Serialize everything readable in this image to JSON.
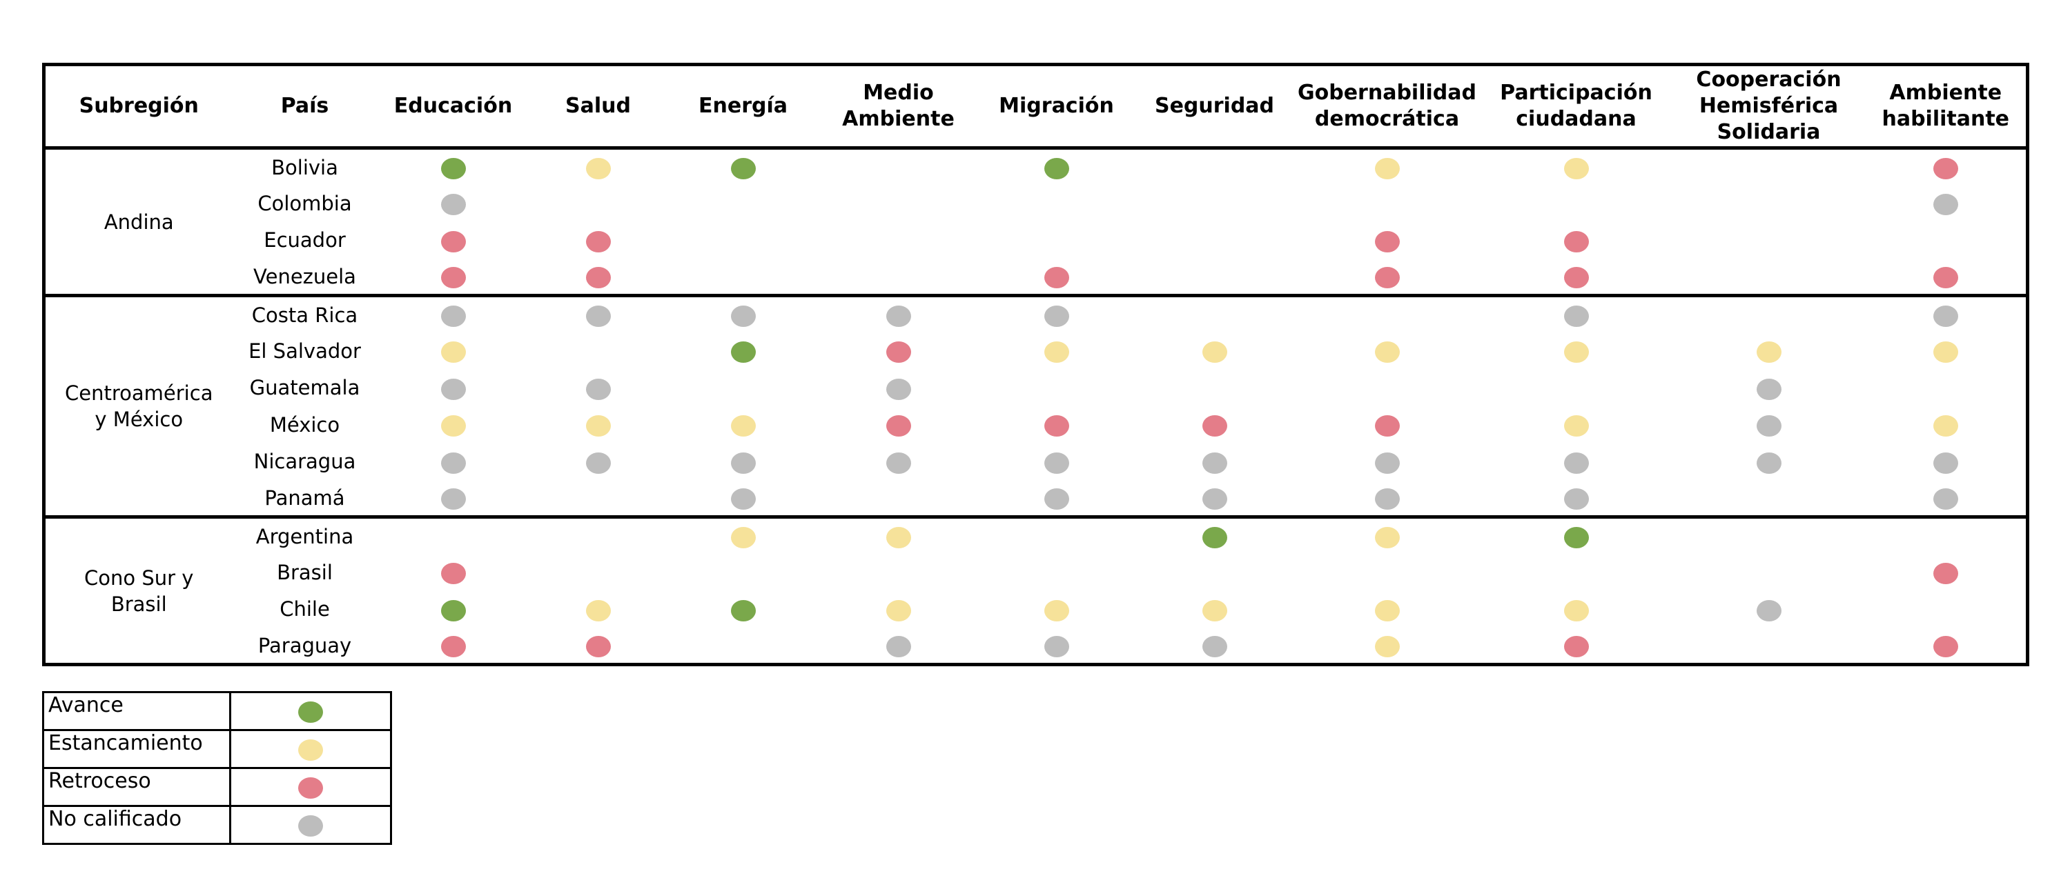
{
  "colors": {
    "avance": "#7aa84b",
    "estancamiento": "#f6e29a",
    "retroceso": "#e47d89",
    "no_calificado": "#bdbdbd"
  },
  "headers": [
    "Subregión",
    "País",
    "Educación",
    "Salud",
    "Energía",
    "Medio\nAmbiente",
    "Migración",
    "Seguridad",
    "Gobernabilidad\ndemocrática",
    "Participación\nciudadana",
    "Cooperación\nHemisférica\nSolidaria",
    "Ambiente\nhabilitante"
  ],
  "groups": [
    {
      "subregion": "Andina",
      "rows": [
        {
          "country": "Bolivia",
          "ratings": [
            "A",
            "E",
            "A",
            "",
            "A",
            "",
            "E",
            "E",
            "",
            "R"
          ]
        },
        {
          "country": "Colombia",
          "ratings": [
            "N",
            "",
            "",
            "",
            "",
            "",
            "",
            "",
            "",
            "N"
          ]
        },
        {
          "country": "Ecuador",
          "ratings": [
            "R",
            "R",
            "",
            "",
            "",
            "",
            "R",
            "R",
            "",
            ""
          ]
        },
        {
          "country": "Venezuela",
          "ratings": [
            "R",
            "R",
            "",
            "",
            "R",
            "",
            "R",
            "R",
            "",
            "R"
          ]
        }
      ]
    },
    {
      "subregion": "Centroamérica\ny México",
      "rows": [
        {
          "country": "Costa Rica",
          "ratings": [
            "N",
            "N",
            "N",
            "N",
            "N",
            "",
            "",
            "N",
            "",
            "N"
          ]
        },
        {
          "country": "El Salvador",
          "ratings": [
            "E",
            "",
            "A",
            "R",
            "E",
            "E",
            "E",
            "E",
            "E",
            "E"
          ]
        },
        {
          "country": "Guatemala",
          "ratings": [
            "N",
            "N",
            "",
            "N",
            "",
            "",
            "",
            "",
            "N",
            ""
          ]
        },
        {
          "country": "México",
          "ratings": [
            "E",
            "E",
            "E",
            "R",
            "R",
            "R",
            "R",
            "E",
            "N",
            "E"
          ]
        },
        {
          "country": "Nicaragua",
          "ratings": [
            "N",
            "N",
            "N",
            "N",
            "N",
            "N",
            "N",
            "N",
            "N",
            "N"
          ]
        },
        {
          "country": "Panamá",
          "ratings": [
            "N",
            "",
            "N",
            "",
            "N",
            "N",
            "N",
            "N",
            "",
            "N"
          ]
        }
      ]
    },
    {
      "subregion": "Cono Sur y\nBrasil",
      "rows": [
        {
          "country": "Argentina",
          "ratings": [
            "",
            "",
            "E",
            "E",
            "",
            "A",
            "E",
            "A",
            "",
            ""
          ]
        },
        {
          "country": "Brasil",
          "ratings": [
            "R",
            "",
            "",
            "",
            "",
            "",
            "",
            "",
            "",
            "R"
          ]
        },
        {
          "country": "Chile",
          "ratings": [
            "A",
            "E",
            "A",
            "E",
            "E",
            "E",
            "E",
            "E",
            "N",
            ""
          ]
        },
        {
          "country": "Paraguay",
          "ratings": [
            "R",
            "R",
            "",
            "N",
            "N",
            "N",
            "E",
            "R",
            "",
            "R"
          ]
        }
      ]
    }
  ],
  "legend": [
    {
      "label": "Avance",
      "code": "A"
    },
    {
      "label": "Estancamiento",
      "code": "E"
    },
    {
      "label": "Retroceso",
      "code": "R"
    },
    {
      "label": "No calificado",
      "code": "N"
    }
  ]
}
